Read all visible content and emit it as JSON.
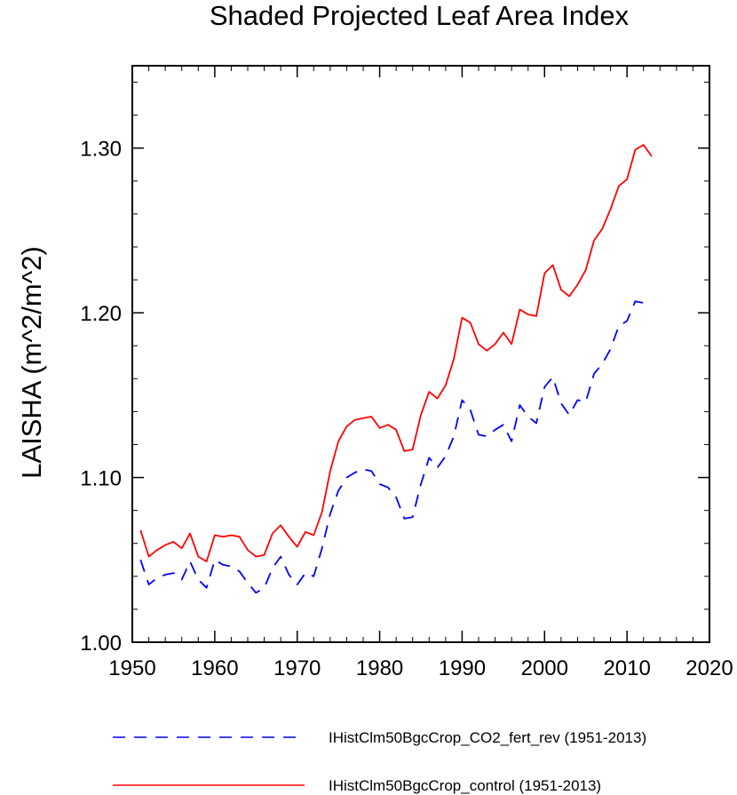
{
  "chart_data": {
    "type": "line",
    "title": "Shaded Projected Leaf Area Index",
    "xlabel": "",
    "ylabel": "LAISHA  (m^2/m^2)",
    "xlim": [
      1950,
      2020
    ],
    "ylim": [
      1.0,
      1.35
    ],
    "grid": false,
    "legend_placement": "bottom",
    "x_ticks": [
      1950,
      1960,
      1970,
      1980,
      1990,
      2000,
      2010,
      2020
    ],
    "x_tick_labels": [
      "1950",
      "1960",
      "1970",
      "1980",
      "1990",
      "2000",
      "2010",
      "2020"
    ],
    "y_ticks": [
      1.0,
      1.1,
      1.2,
      1.3
    ],
    "y_tick_labels": [
      "1.00",
      "1.10",
      "1.20",
      "1.30"
    ],
    "x": [
      1951,
      1952,
      1953,
      1954,
      1955,
      1956,
      1957,
      1958,
      1959,
      1960,
      1961,
      1962,
      1963,
      1964,
      1965,
      1966,
      1967,
      1968,
      1969,
      1970,
      1971,
      1972,
      1973,
      1974,
      1975,
      1976,
      1977,
      1978,
      1979,
      1980,
      1981,
      1982,
      1983,
      1984,
      1985,
      1986,
      1987,
      1988,
      1989,
      1990,
      1991,
      1992,
      1993,
      1994,
      1995,
      1996,
      1997,
      1998,
      1999,
      2000,
      2001,
      2002,
      2003,
      2004,
      2005,
      2006,
      2007,
      2008,
      2009,
      2010,
      2011,
      2012,
      2013
    ],
    "series": [
      {
        "name": "IHistClm50BgcCrop_CO2_fert_rev (1951-2013)",
        "color": "#0000ff",
        "dash": "dashed",
        "values": [
          1.05,
          1.035,
          1.039,
          1.041,
          1.042,
          1.038,
          1.049,
          1.038,
          1.033,
          1.05,
          1.047,
          1.046,
          1.043,
          1.036,
          1.03,
          1.033,
          1.045,
          1.052,
          1.041,
          1.035,
          1.042,
          1.04,
          1.057,
          1.078,
          1.092,
          1.1,
          1.103,
          1.105,
          1.104,
          1.096,
          1.094,
          1.088,
          1.075,
          1.076,
          1.096,
          1.112,
          1.106,
          1.113,
          1.125,
          1.147,
          1.141,
          1.126,
          1.125,
          1.129,
          1.132,
          1.122,
          1.144,
          1.137,
          1.133,
          1.155,
          1.161,
          1.145,
          1.138,
          1.147,
          1.146,
          1.163,
          1.169,
          1.178,
          1.192,
          1.195,
          1.207,
          1.206,
          1.206
        ]
      },
      {
        "name": "IHistClm50BgcCrop_control (1951-2013)",
        "color": "#ff0000",
        "dash": "solid",
        "values": [
          1.068,
          1.052,
          1.056,
          1.059,
          1.061,
          1.057,
          1.066,
          1.052,
          1.049,
          1.065,
          1.064,
          1.065,
          1.064,
          1.056,
          1.052,
          1.053,
          1.066,
          1.071,
          1.064,
          1.058,
          1.067,
          1.065,
          1.079,
          1.104,
          1.122,
          1.131,
          1.135,
          1.136,
          1.137,
          1.13,
          1.132,
          1.129,
          1.116,
          1.117,
          1.138,
          1.152,
          1.148,
          1.156,
          1.172,
          1.197,
          1.194,
          1.181,
          1.177,
          1.181,
          1.188,
          1.181,
          1.202,
          1.199,
          1.198,
          1.224,
          1.229,
          1.214,
          1.21,
          1.217,
          1.226,
          1.244,
          1.251,
          1.263,
          1.277,
          1.281,
          1.299,
          1.302,
          1.295
        ]
      }
    ]
  }
}
